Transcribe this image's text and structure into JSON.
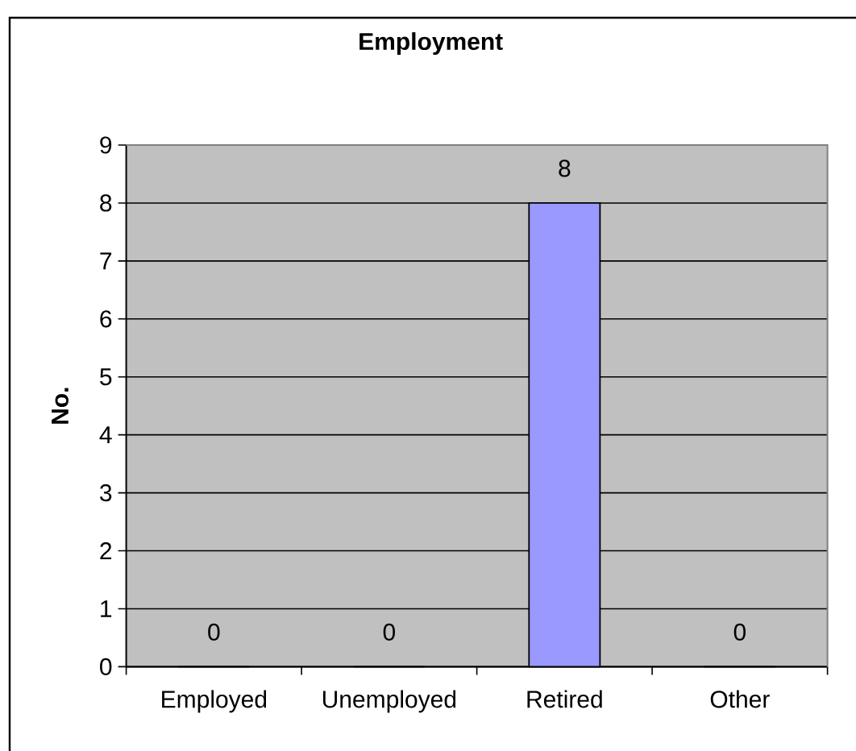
{
  "chart_data": {
    "type": "bar",
    "title": "Employment",
    "ylabel": "No.",
    "categories": [
      "Employed",
      "Unemployed",
      "Retired",
      "Other"
    ],
    "values": [
      0,
      0,
      8,
      0
    ],
    "color": "#9999ff",
    "ylim": [
      0,
      9
    ],
    "yticks": [
      0,
      1,
      2,
      3,
      4,
      5,
      6,
      7,
      8,
      9
    ],
    "grid": "y",
    "data_labels": true
  }
}
